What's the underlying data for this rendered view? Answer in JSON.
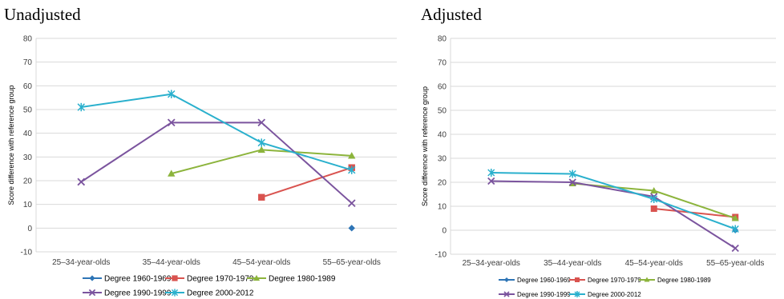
{
  "chart_data": [
    {
      "type": "line",
      "title": "Unadjusted",
      "xlabel": "",
      "ylabel": "Score difference with reference group",
      "ylim": [
        -10,
        80
      ],
      "yticks": [
        -10,
        0,
        10,
        20,
        30,
        40,
        50,
        60,
        70,
        80
      ],
      "categories": [
        "25–34-year-olds",
        "35–44-year-olds",
        "45–54-year-olds",
        "55–65-year-olds"
      ],
      "grid": true,
      "legend_position": "bottom",
      "series": [
        {
          "name": "Degree 1960-1969",
          "color": "#2e75b6",
          "marker": "diamond",
          "values": [
            null,
            null,
            null,
            0
          ]
        },
        {
          "name": "Degree 1970-1979",
          "color": "#d9534f",
          "marker": "square",
          "values": [
            null,
            null,
            13,
            25.5
          ]
        },
        {
          "name": "Degree 1980-1989",
          "color": "#8cb43c",
          "marker": "triangle",
          "values": [
            null,
            23,
            33,
            30.5
          ]
        },
        {
          "name": "Degree 1990-1999",
          "color": "#7b549e",
          "marker": "x",
          "values": [
            19.5,
            44.5,
            44.5,
            10.5
          ]
        },
        {
          "name": "Degree 2000-2012",
          "color": "#2ab0cd",
          "marker": "star",
          "values": [
            51,
            56.5,
            36,
            24.5
          ]
        }
      ]
    },
    {
      "type": "line",
      "title": "Adjusted",
      "xlabel": "",
      "ylabel": "Score difference with reference group",
      "ylim": [
        -10,
        80
      ],
      "yticks": [
        -10,
        0,
        10,
        20,
        30,
        40,
        50,
        60,
        70,
        80
      ],
      "categories": [
        "25–34-year-olds",
        "35–44-year-olds",
        "45–54-year-olds",
        "55–65-year-olds"
      ],
      "grid": true,
      "legend_position": "bottom",
      "series": [
        {
          "name": "Degree 1960-1969",
          "color": "#2e75b6",
          "marker": "diamond",
          "values": [
            null,
            null,
            null,
            0
          ]
        },
        {
          "name": "Degree 1970-1979",
          "color": "#d9534f",
          "marker": "square",
          "values": [
            null,
            null,
            9,
            5.5
          ]
        },
        {
          "name": "Degree 1980-1989",
          "color": "#8cb43c",
          "marker": "triangle",
          "values": [
            null,
            19.5,
            16.5,
            5
          ]
        },
        {
          "name": "Degree 1990-1999",
          "color": "#7b549e",
          "marker": "x",
          "values": [
            20.5,
            20,
            14,
            -7.5
          ]
        },
        {
          "name": "Degree 2000-2012",
          "color": "#2ab0cd",
          "marker": "star",
          "values": [
            24,
            23.5,
            13,
            0.5
          ]
        }
      ]
    }
  ]
}
